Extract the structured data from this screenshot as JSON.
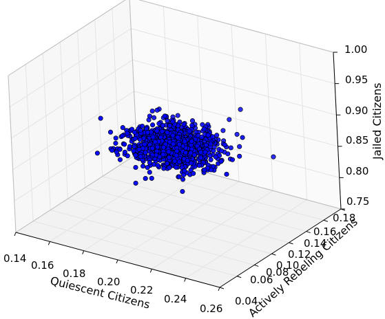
{
  "chart_data": {
    "type": "scatter",
    "projection": "3d",
    "title": "",
    "xlabel": "Quiescent Citizens",
    "ylabel": "Actively Rebeling Citizens",
    "zlabel": "Jailed Citizens",
    "xlim": [
      0.14,
      0.26
    ],
    "ylim": [
      0.04,
      0.18
    ],
    "zlim": [
      0.75,
      1.0
    ],
    "xticks": [
      "0.14",
      "0.16",
      "0.18",
      "0.20",
      "0.22",
      "0.24",
      "0.26"
    ],
    "yticks": [
      "0.04",
      "0.06",
      "0.08",
      "0.10",
      "0.12",
      "0.14",
      "0.16",
      "0.18"
    ],
    "zticks": [
      "0.75",
      "0.80",
      "0.85",
      "0.90",
      "0.95",
      "1.00"
    ],
    "grid": true,
    "marker": {
      "color": "#0000ff",
      "edge": "#000000",
      "shape": "circle"
    },
    "point_count_approx": 1000,
    "distribution": {
      "x_mean": 0.2,
      "x_sd": 0.012,
      "y_mean": 0.11,
      "y_sd": 0.012,
      "z_mean": 0.87,
      "z_sd": 0.012
    },
    "outliers": [
      {
        "x": 0.207,
        "y": 0.103,
        "z": 0.808
      },
      {
        "x": 0.2415,
        "y": 0.142,
        "z": 0.8536
      },
      {
        "x": 0.2117,
        "y": 0.081,
        "z": 0.8853
      },
      {
        "x": 0.1683,
        "y": 0.088,
        "z": 0.9097
      },
      {
        "x": 0.2205,
        "y": 0.147,
        "z": 0.9094
      },
      {
        "x": 0.1943,
        "y": 0.075,
        "z": 0.8369
      }
    ]
  }
}
